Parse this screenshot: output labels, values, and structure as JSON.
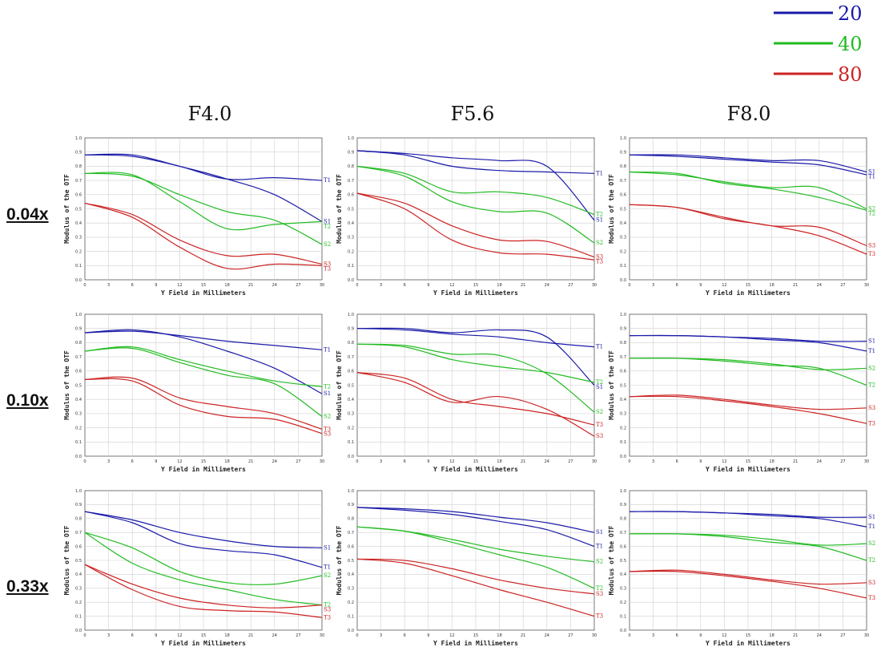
{
  "legend": [
    {
      "label": "20",
      "color": "#1a1aa8"
    },
    {
      "label": "40",
      "color": "#22bb22"
    },
    {
      "label": "80",
      "color": "#cc2222"
    }
  ],
  "columns": [
    "F4.0",
    "F5.6",
    "F8.0"
  ],
  "rows": [
    "0.04x",
    "0.10x",
    "0.33x"
  ],
  "chart_data": [
    {
      "type": "line",
      "column": "F4.0",
      "row": "0.04x",
      "xlabel": "Y Field in Millimeters",
      "ylabel": "Modulus of the OTF",
      "xlim": [
        0,
        30
      ],
      "ylim": [
        0,
        1
      ],
      "grid": true,
      "x": [
        0,
        6,
        12,
        18,
        24,
        30
      ],
      "series": [
        {
          "name": "S1",
          "values": [
            0.88,
            0.87,
            0.8,
            0.71,
            0.6,
            0.41
          ]
        },
        {
          "name": "T1",
          "values": [
            0.88,
            0.88,
            0.8,
            0.71,
            0.72,
            0.7
          ]
        },
        {
          "name": "S2",
          "values": [
            0.75,
            0.73,
            0.6,
            0.48,
            0.42,
            0.25
          ]
        },
        {
          "name": "T2",
          "values": [
            0.75,
            0.74,
            0.55,
            0.36,
            0.39,
            0.41
          ]
        },
        {
          "name": "S3",
          "values": [
            0.54,
            0.46,
            0.28,
            0.17,
            0.18,
            0.11
          ]
        },
        {
          "name": "T3",
          "values": [
            0.54,
            0.44,
            0.23,
            0.08,
            0.11,
            0.1
          ]
        }
      ]
    },
    {
      "type": "line",
      "column": "F5.6",
      "row": "0.04x",
      "xlabel": "Y Field in Millimeters",
      "ylabel": "Modulus of the OTF",
      "xlim": [
        0,
        30
      ],
      "ylim": [
        0,
        1
      ],
      "grid": true,
      "x": [
        0,
        6,
        12,
        18,
        24,
        30
      ],
      "series": [
        {
          "name": "T1",
          "values": [
            0.91,
            0.88,
            0.8,
            0.77,
            0.76,
            0.75
          ]
        },
        {
          "name": "S1",
          "values": [
            0.91,
            0.89,
            0.86,
            0.84,
            0.8,
            0.42
          ]
        },
        {
          "name": "T2",
          "values": [
            0.8,
            0.75,
            0.62,
            0.62,
            0.58,
            0.46
          ]
        },
        {
          "name": "S2",
          "values": [
            0.8,
            0.73,
            0.55,
            0.48,
            0.47,
            0.26
          ]
        },
        {
          "name": "S3",
          "values": [
            0.61,
            0.54,
            0.38,
            0.28,
            0.27,
            0.16
          ]
        },
        {
          "name": "T3",
          "values": [
            0.61,
            0.5,
            0.28,
            0.19,
            0.18,
            0.14
          ]
        }
      ]
    },
    {
      "type": "line",
      "column": "F8.0",
      "row": "0.04x",
      "xlabel": "Y Field in Millimeters",
      "ylabel": "Modulus of the OTF",
      "xlim": [
        0,
        30
      ],
      "ylim": [
        0,
        1
      ],
      "grid": true,
      "x": [
        0,
        6,
        12,
        18,
        24,
        30
      ],
      "series": [
        {
          "name": "S1",
          "values": [
            0.88,
            0.88,
            0.86,
            0.84,
            0.84,
            0.76
          ]
        },
        {
          "name": "T1",
          "values": [
            0.88,
            0.87,
            0.85,
            0.83,
            0.81,
            0.74
          ]
        },
        {
          "name": "S2",
          "values": [
            0.76,
            0.74,
            0.69,
            0.65,
            0.65,
            0.5
          ]
        },
        {
          "name": "T2",
          "values": [
            0.76,
            0.75,
            0.68,
            0.64,
            0.58,
            0.49
          ]
        },
        {
          "name": "S3",
          "values": [
            0.53,
            0.51,
            0.44,
            0.38,
            0.37,
            0.24
          ]
        },
        {
          "name": "T3",
          "values": [
            0.53,
            0.51,
            0.43,
            0.38,
            0.31,
            0.18
          ]
        }
      ]
    },
    {
      "type": "line",
      "column": "F4.0",
      "row": "0.10x",
      "xlabel": "Y Field in Millimeters",
      "ylabel": "Modulus of the OTF",
      "xlim": [
        0,
        30
      ],
      "ylim": [
        0,
        1
      ],
      "grid": true,
      "x": [
        0,
        6,
        12,
        18,
        24,
        30
      ],
      "series": [
        {
          "name": "T1",
          "values": [
            0.87,
            0.88,
            0.85,
            0.81,
            0.78,
            0.75
          ]
        },
        {
          "name": "S1",
          "values": [
            0.87,
            0.89,
            0.84,
            0.74,
            0.62,
            0.44
          ]
        },
        {
          "name": "T2",
          "values": [
            0.74,
            0.77,
            0.68,
            0.6,
            0.53,
            0.49
          ]
        },
        {
          "name": "S2",
          "values": [
            0.74,
            0.76,
            0.66,
            0.57,
            0.51,
            0.28
          ]
        },
        {
          "name": "T3",
          "values": [
            0.54,
            0.55,
            0.41,
            0.35,
            0.3,
            0.19
          ]
        },
        {
          "name": "S3",
          "values": [
            0.54,
            0.53,
            0.36,
            0.28,
            0.26,
            0.16
          ]
        }
      ]
    },
    {
      "type": "line",
      "column": "F5.6",
      "row": "0.10x",
      "xlabel": "Y Field in Millimeters",
      "ylabel": "Modulus of the OTF",
      "xlim": [
        0,
        30
      ],
      "ylim": [
        0,
        1
      ],
      "grid": true,
      "x": [
        0,
        6,
        12,
        18,
        24,
        30
      ],
      "series": [
        {
          "name": "T1",
          "values": [
            0.9,
            0.89,
            0.86,
            0.84,
            0.8,
            0.77
          ]
        },
        {
          "name": "S1",
          "values": [
            0.9,
            0.9,
            0.87,
            0.89,
            0.84,
            0.5
          ]
        },
        {
          "name": "T2",
          "values": [
            0.79,
            0.77,
            0.68,
            0.63,
            0.59,
            0.52
          ]
        },
        {
          "name": "S2",
          "values": [
            0.79,
            0.78,
            0.72,
            0.71,
            0.58,
            0.31
          ]
        },
        {
          "name": "T3",
          "values": [
            0.59,
            0.55,
            0.4,
            0.35,
            0.3,
            0.22
          ]
        },
        {
          "name": "S3",
          "values": [
            0.59,
            0.52,
            0.38,
            0.42,
            0.33,
            0.14
          ]
        }
      ]
    },
    {
      "type": "line",
      "column": "F8.0",
      "row": "0.10x",
      "xlabel": "Y Field in Millimeters",
      "ylabel": "Modulus of the OTF",
      "xlim": [
        0,
        30
      ],
      "ylim": [
        0,
        1
      ],
      "grid": true,
      "x": [
        0,
        6,
        12,
        18,
        24,
        30
      ],
      "series": [
        {
          "name": "S1",
          "values": [
            0.85,
            0.85,
            0.84,
            0.83,
            0.81,
            0.81
          ]
        },
        {
          "name": "T1",
          "values": [
            0.85,
            0.85,
            0.84,
            0.82,
            0.8,
            0.74
          ]
        },
        {
          "name": "S2",
          "values": [
            0.69,
            0.69,
            0.68,
            0.65,
            0.61,
            0.62
          ]
        },
        {
          "name": "T2",
          "values": [
            0.69,
            0.69,
            0.67,
            0.64,
            0.62,
            0.5
          ]
        },
        {
          "name": "S3",
          "values": [
            0.42,
            0.43,
            0.4,
            0.36,
            0.33,
            0.34
          ]
        },
        {
          "name": "T3",
          "values": [
            0.42,
            0.42,
            0.39,
            0.35,
            0.3,
            0.23
          ]
        }
      ]
    },
    {
      "type": "line",
      "column": "F4.0",
      "row": "0.33x",
      "xlabel": "Y Field in Millimeters",
      "ylabel": "Modulus of the OTF",
      "xlim": [
        0,
        30
      ],
      "ylim": [
        0,
        1
      ],
      "grid": true,
      "x": [
        0,
        6,
        12,
        18,
        24,
        30
      ],
      "series": [
        {
          "name": "S1",
          "values": [
            0.85,
            0.79,
            0.7,
            0.64,
            0.6,
            0.59
          ]
        },
        {
          "name": "T1",
          "values": [
            0.85,
            0.77,
            0.62,
            0.57,
            0.54,
            0.45
          ]
        },
        {
          "name": "S2",
          "values": [
            0.7,
            0.59,
            0.42,
            0.34,
            0.33,
            0.39
          ]
        },
        {
          "name": "T2",
          "values": [
            0.7,
            0.48,
            0.36,
            0.29,
            0.22,
            0.18
          ]
        },
        {
          "name": "S3",
          "values": [
            0.47,
            0.33,
            0.23,
            0.18,
            0.16,
            0.18
          ]
        },
        {
          "name": "T3",
          "values": [
            0.47,
            0.29,
            0.17,
            0.14,
            0.13,
            0.09
          ]
        }
      ]
    },
    {
      "type": "line",
      "column": "F5.6",
      "row": "0.33x",
      "xlabel": "Y Field in Millimeters",
      "ylabel": "Modulus of the OTF",
      "xlim": [
        0,
        30
      ],
      "ylim": [
        0,
        1
      ],
      "grid": true,
      "x": [
        0,
        6,
        12,
        18,
        24,
        30
      ],
      "series": [
        {
          "name": "S1",
          "values": [
            0.88,
            0.87,
            0.85,
            0.81,
            0.77,
            0.7
          ]
        },
        {
          "name": "T1",
          "values": [
            0.88,
            0.86,
            0.83,
            0.78,
            0.72,
            0.6
          ]
        },
        {
          "name": "S2",
          "values": [
            0.74,
            0.71,
            0.65,
            0.58,
            0.53,
            0.49
          ]
        },
        {
          "name": "T2",
          "values": [
            0.74,
            0.71,
            0.63,
            0.54,
            0.45,
            0.3
          ]
        },
        {
          "name": "S3",
          "values": [
            0.51,
            0.5,
            0.44,
            0.36,
            0.3,
            0.26
          ]
        },
        {
          "name": "T3",
          "values": [
            0.51,
            0.48,
            0.39,
            0.29,
            0.2,
            0.1
          ]
        }
      ]
    },
    {
      "type": "line",
      "column": "F8.0",
      "row": "0.33x",
      "xlabel": "Y Field in Millimeters",
      "ylabel": "Modulus of the OTF",
      "xlim": [
        0,
        30
      ],
      "ylim": [
        0,
        1
      ],
      "grid": true,
      "x": [
        0,
        6,
        12,
        18,
        24,
        30
      ],
      "series": [
        {
          "name": "S1",
          "values": [
            0.85,
            0.85,
            0.84,
            0.83,
            0.81,
            0.81
          ]
        },
        {
          "name": "T1",
          "values": [
            0.85,
            0.85,
            0.84,
            0.82,
            0.8,
            0.74
          ]
        },
        {
          "name": "S2",
          "values": [
            0.69,
            0.69,
            0.68,
            0.65,
            0.61,
            0.62
          ]
        },
        {
          "name": "T2",
          "values": [
            0.69,
            0.69,
            0.67,
            0.63,
            0.6,
            0.5
          ]
        },
        {
          "name": "S3",
          "values": [
            0.42,
            0.43,
            0.4,
            0.36,
            0.33,
            0.34
          ]
        },
        {
          "name": "T3",
          "values": [
            0.42,
            0.42,
            0.39,
            0.35,
            0.3,
            0.23
          ]
        }
      ]
    }
  ]
}
